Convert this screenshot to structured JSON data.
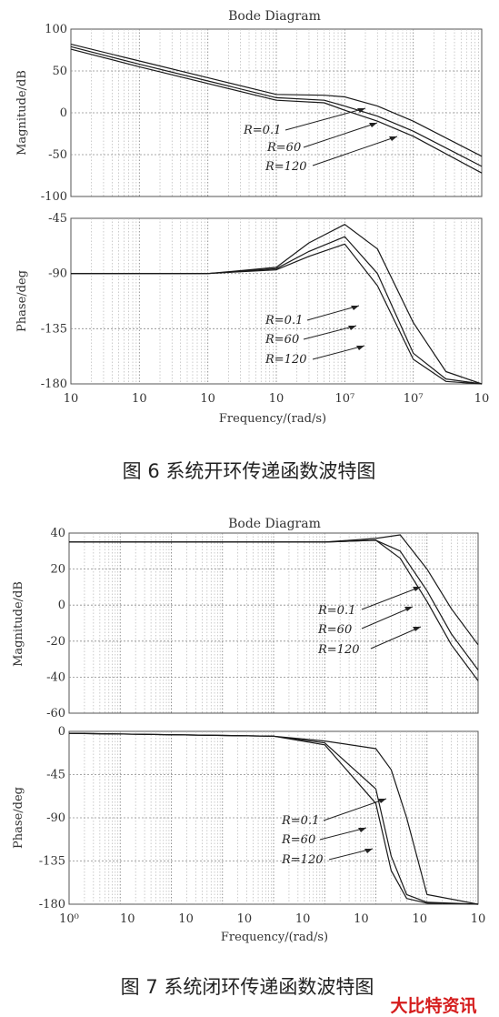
{
  "figures": [
    {
      "title": "Bode Diagram",
      "xlabel": "Frequency/(rad/s)",
      "caption": "图 6    系统开环传递函数波特图",
      "x_ticks": [
        "10",
        "10",
        "10",
        "10",
        "10⁷",
        "10⁷",
        "10"
      ],
      "mag": {
        "ylabel": "Magnitude/dB",
        "ylim": [
          -100,
          100
        ],
        "yticks": [
          "100",
          "50",
          "0",
          "-50",
          "-100"
        ]
      },
      "phase": {
        "ylabel": "Phase/deg",
        "ylim": [
          -180,
          -45
        ],
        "yticks": [
          "-45",
          "-90",
          "-135",
          "-180"
        ]
      },
      "mag_labels": [
        "R=0.1",
        "R=60",
        "R=120"
      ],
      "phase_labels": [
        "R=0.1",
        "R=60",
        "R=120"
      ]
    },
    {
      "title": "Bode Diagram",
      "xlabel": "Frequency/(rad/s)",
      "caption": "图 7    系统闭环传递函数波特图",
      "x_ticks": [
        "10⁰",
        "10",
        "10",
        "10",
        "10",
        "10",
        "10",
        "10"
      ],
      "mag": {
        "ylabel": "Magnitude/dB",
        "ylim": [
          -60,
          40
        ],
        "yticks": [
          "40",
          "20",
          "0",
          "-20",
          "-40",
          "-60"
        ]
      },
      "phase": {
        "ylabel": "Phase/deg",
        "ylim": [
          -180,
          0
        ],
        "yticks": [
          "0",
          "-45",
          "-90",
          "-135",
          "-180"
        ]
      },
      "mag_labels": [
        "R=0.1",
        "R=60",
        "R=120"
      ],
      "phase_labels": [
        "R=0.1",
        "R=60",
        "R=120"
      ]
    }
  ],
  "watermark": "大比特资讯",
  "chart_data": [
    {
      "type": "line",
      "title": "Bode Diagram",
      "xlabel": "Frequency/(rad/s)",
      "ylabel": "Magnitude/dB",
      "xscale": "log",
      "xlim": [
        1,
        1000000
      ],
      "ylim": [
        -100,
        100
      ],
      "grid": true,
      "x": [
        1,
        10,
        100,
        1000,
        5000,
        10000,
        30000,
        100000,
        1000000
      ],
      "series": [
        {
          "name": "R=0.1",
          "values": [
            82,
            62,
            42,
            22,
            21,
            19,
            8,
            -10,
            -52
          ]
        },
        {
          "name": "R=60",
          "values": [
            79,
            58,
            38,
            18,
            15,
            8,
            -4,
            -22,
            -64
          ]
        },
        {
          "name": "R=120",
          "values": [
            76,
            55,
            35,
            15,
            12,
            3,
            -10,
            -28,
            -72
          ]
        }
      ]
    },
    {
      "type": "line",
      "title": "Bode Diagram",
      "xlabel": "Frequency/(rad/s)",
      "ylabel": "Phase/deg",
      "xscale": "log",
      "xlim": [
        1,
        1000000
      ],
      "ylim": [
        -180,
        -45
      ],
      "grid": true,
      "x": [
        1,
        100,
        1000,
        3000,
        10000,
        30000,
        100000,
        300000,
        1000000
      ],
      "series": [
        {
          "name": "R=0.1",
          "values": [
            -90,
            -90,
            -85,
            -65,
            -50,
            -70,
            -130,
            -170,
            -180
          ]
        },
        {
          "name": "R=60",
          "values": [
            -90,
            -90,
            -86,
            -72,
            -60,
            -90,
            -155,
            -176,
            -180
          ]
        },
        {
          "name": "R=120",
          "values": [
            -90,
            -90,
            -87,
            -76,
            -66,
            -100,
            -160,
            -178,
            -180
          ]
        }
      ]
    },
    {
      "type": "line",
      "title": "Bode Diagram",
      "xlabel": "Frequency/(rad/s)",
      "ylabel": "Magnitude/dB",
      "xscale": "log",
      "xlim": [
        1,
        100000000
      ],
      "ylim": [
        -60,
        40
      ],
      "grid": true,
      "x": [
        1,
        100000,
        1000000,
        3000000,
        10000000,
        30000000,
        100000000
      ],
      "series": [
        {
          "name": "R=0.1",
          "values": [
            35,
            35,
            37,
            39,
            20,
            -2,
            -22
          ]
        },
        {
          "name": "R=60",
          "values": [
            35,
            35,
            36,
            30,
            8,
            -16,
            -36
          ]
        },
        {
          "name": "R=120",
          "values": [
            35,
            35,
            36,
            26,
            2,
            -22,
            -42
          ]
        }
      ]
    },
    {
      "type": "line",
      "title": "Bode Diagram",
      "xlabel": "Frequency/(rad/s)",
      "ylabel": "Phase/deg",
      "xscale": "log",
      "xlim": [
        1,
        100000000
      ],
      "ylim": [
        -180,
        0
      ],
      "grid": true,
      "x": [
        1,
        10000,
        100000,
        1000000,
        2000000,
        4000000,
        10000000,
        100000000
      ],
      "series": [
        {
          "name": "R=0.1",
          "values": [
            -2,
            -5,
            -10,
            -18,
            -40,
            -90,
            -170,
            -180
          ]
        },
        {
          "name": "R=60",
          "values": [
            -2,
            -5,
            -12,
            -60,
            -130,
            -170,
            -178,
            -180
          ]
        },
        {
          "name": "R=120",
          "values": [
            -2,
            -5,
            -14,
            -75,
            -145,
            -174,
            -179,
            -180
          ]
        }
      ]
    }
  ]
}
